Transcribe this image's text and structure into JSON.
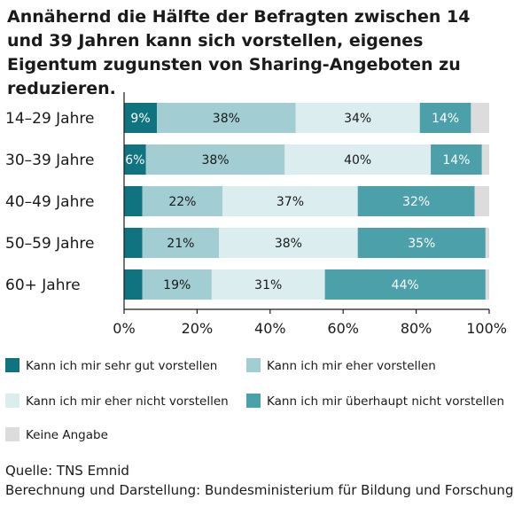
{
  "title": "Annähernd die Hälfte der Befragten zwischen 14 und 39 Jahren kann sich vorstellen, eigenes Eigentum zugunsten von Sharing-Angeboten zu reduzieren.",
  "colors": {
    "sehr_gut": "#0f7480",
    "eher": "#a2cdd3",
    "eher_nicht": "#dcedf0",
    "ueberhaupt_nicht": "#4ba0aa",
    "keine_angabe": "#dcdcdc",
    "bar_text_dark": "#1a1a1a",
    "bar_text_light": "#ffffff"
  },
  "chart_data": {
    "type": "bar",
    "orientation": "horizontal",
    "stacked": true,
    "categories": [
      "14–29 Jahre",
      "30–39 Jahre",
      "40–49 Jahre",
      "50–59 Jahre",
      "60+ Jahre"
    ],
    "series": [
      {
        "name": "Kann ich mir sehr gut vorstellen",
        "key": "sehr_gut",
        "values": [
          9,
          6,
          5,
          5,
          5
        ],
        "labels": [
          "9%",
          "6%",
          "",
          "",
          ""
        ]
      },
      {
        "name": "Kann ich mir eher vorstellen",
        "key": "eher",
        "values": [
          38,
          38,
          22,
          21,
          19
        ],
        "labels": [
          "38%",
          "38%",
          "22%",
          "21%",
          "19%"
        ]
      },
      {
        "name": "Kann ich mir eher nicht vorstellen",
        "key": "eher_nicht",
        "values": [
          34,
          40,
          37,
          38,
          31
        ],
        "labels": [
          "34%",
          "40%",
          "37%",
          "38%",
          "31%"
        ]
      },
      {
        "name": "Kann ich mir überhaupt nicht vorstellen",
        "key": "ueberhaupt_nicht",
        "values": [
          14,
          14,
          32,
          35,
          44
        ],
        "labels": [
          "14%",
          "14%",
          "32%",
          "35%",
          "44%"
        ]
      },
      {
        "name": "Keine Angabe",
        "key": "keine_angabe",
        "values": [
          5,
          2,
          4,
          1,
          1
        ],
        "labels": [
          "",
          "",
          "",
          "",
          ""
        ]
      }
    ],
    "xlim": [
      0,
      100
    ],
    "xticks": [
      0,
      20,
      40,
      60,
      80,
      100
    ],
    "xtick_labels": [
      "0%",
      "20%",
      "40%",
      "60%",
      "80%",
      "100%"
    ],
    "grid": false,
    "legend_position": "bottom"
  },
  "source": {
    "line1": "Quelle: TNS Emnid",
    "line2": "Berechnung und Darstellung: Bundesministerium für Bildung und Forschung"
  }
}
